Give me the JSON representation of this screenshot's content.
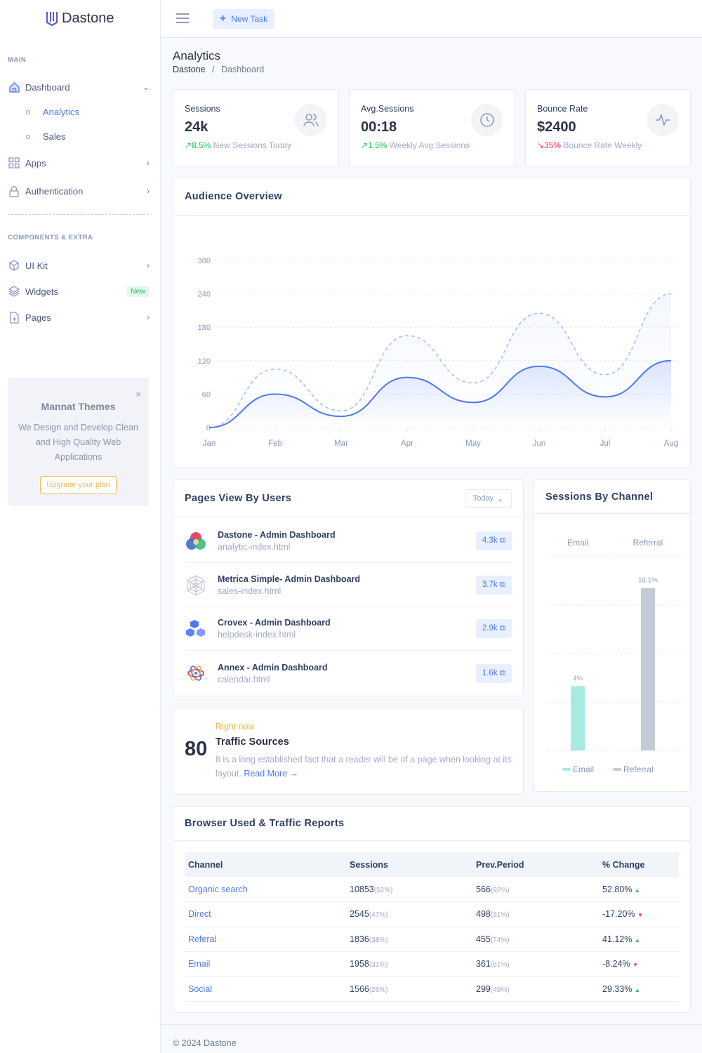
{
  "brand": "Dastone",
  "sidebar": {
    "main_label": "MAIN",
    "dashboard": "Dashboard",
    "sub": [
      "Analytics",
      "Sales"
    ],
    "apps": "Apps",
    "auth": "Authentication",
    "comp_label": "COMPONENTS & EXTRA",
    "uikit": "UI Kit",
    "widgets": "Widgets",
    "widgets_badge": "New",
    "pages": "Pages",
    "promo": {
      "title": "Mannat Themes",
      "text": "We Design and Develop Clean and High Quality Web Applications",
      "button": "Upgrade your plan"
    }
  },
  "topbar": {
    "new_task": "New Task"
  },
  "header": {
    "title": "Analytics",
    "breadcrumb": [
      "Dastone",
      "Dashboard"
    ]
  },
  "stats": [
    {
      "label": "Sessions",
      "value": "24k",
      "change": "8.5%",
      "note": "New Sessions Today",
      "trend": "up",
      "icon": "users-icon"
    },
    {
      "label": "Avg.Sessions",
      "value": "00:18",
      "change": "1.5%",
      "note": "Weekly Avg.Sessions",
      "trend": "up",
      "icon": "clock-icon"
    },
    {
      "label": "Bounce Rate",
      "value": "$2400",
      "change": "35%",
      "note": "Bounce Rate Weekly",
      "trend": "down",
      "icon": "activity-icon"
    }
  ],
  "audience": {
    "title": "Audience Overview"
  },
  "chart_data": {
    "type": "area",
    "categories": [
      "Jan",
      "Feb",
      "Mar",
      "Apr",
      "May",
      "Jun",
      "Jul",
      "Aug"
    ],
    "yticks": [
      0,
      60,
      120,
      180,
      240,
      300
    ],
    "ylim": [
      0,
      300
    ],
    "grid": true,
    "series": [
      {
        "style": "solid",
        "color": "#4d79f6",
        "values": [
          0,
          60,
          20,
          90,
          45,
          110,
          55,
          120
        ]
      },
      {
        "style": "dashed",
        "color": "#a8c0f7",
        "values": [
          0,
          105,
          30,
          165,
          80,
          205,
          95,
          240
        ]
      }
    ]
  },
  "pages_view": {
    "title": "Pages View By Users",
    "filter": "Today",
    "items": [
      {
        "title": "Dastone - Admin Dashboard",
        "file": "analytic-index.html",
        "views": "4.3k"
      },
      {
        "title": "Metrica Simple- Admin Dashboard",
        "file": "sales-index.html",
        "views": "3.7k"
      },
      {
        "title": "Crovex - Admin Dashboard",
        "file": "helpdesk-index.html",
        "views": "2.9k"
      },
      {
        "title": "Annex - Admin Dashboard",
        "file": "calendar.html",
        "views": "1.6k"
      }
    ]
  },
  "channel": {
    "title": "Sessions By Channel",
    "chart_data": {
      "type": "bar",
      "categories": [
        "Email",
        "Referral"
      ],
      "values": [
        4,
        10.1
      ],
      "labels": [
        "4%",
        "10.1%"
      ],
      "colors": [
        "#a5ebe0",
        "#c2cad6"
      ]
    }
  },
  "traffic": {
    "number": "80",
    "kicker": "Right now",
    "title": "Traffic Sources",
    "text": "It is a long established fact that a reader will be of a page when looking at its layout.",
    "link": "Read More"
  },
  "browser": {
    "title": "Browser Used & Traffic Reports",
    "columns": [
      "Channel",
      "Sessions",
      "Prev.Period",
      "% Change"
    ],
    "rows": [
      {
        "channel": "Organic search",
        "sessions": "10853",
        "s_pct": "(52%)",
        "prev": "566",
        "p_pct": "(92%)",
        "change": "52.80%",
        "dir": "up"
      },
      {
        "channel": "Direct",
        "sessions": "2545",
        "s_pct": "(47%)",
        "prev": "498",
        "p_pct": "(81%)",
        "change": "-17.20%",
        "dir": "down"
      },
      {
        "channel": "Referal",
        "sessions": "1836",
        "s_pct": "(38%)",
        "prev": "455",
        "p_pct": "(74%)",
        "change": "41.12%",
        "dir": "up"
      },
      {
        "channel": "Email",
        "sessions": "1958",
        "s_pct": "(31%)",
        "prev": "361",
        "p_pct": "(61%)",
        "change": "-8.24%",
        "dir": "down"
      },
      {
        "channel": "Social",
        "sessions": "1566",
        "s_pct": "(26%)",
        "prev": "299",
        "p_pct": "(49%)",
        "change": "29.33%",
        "dir": "up"
      }
    ]
  },
  "footer": "© 2024 Dastone"
}
